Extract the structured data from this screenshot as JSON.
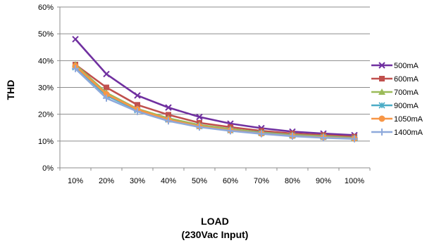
{
  "chart_data": {
    "type": "line",
    "categories": [
      "10%",
      "20%",
      "30%",
      "40%",
      "50%",
      "60%",
      "70%",
      "80%",
      "90%",
      "100%"
    ],
    "ylabel": "THD",
    "xlabel_line1": "LOAD",
    "xlabel_line2": "(230Vac Input)",
    "ylim": [
      0,
      60
    ],
    "y_tick_labels": [
      "0%",
      "10%",
      "20%",
      "30%",
      "40%",
      "50%",
      "60%"
    ],
    "grid": true,
    "legend_position": "right",
    "series": [
      {
        "name": "500mA",
        "color": "#7030A0",
        "marker": "x",
        "values": [
          48,
          35,
          27,
          22.5,
          19,
          16.5,
          14.8,
          13.5,
          12.8,
          12.2
        ]
      },
      {
        "name": "600mA",
        "color": "#C0504D",
        "marker": "square",
        "values": [
          38.5,
          30,
          23.5,
          19.8,
          16.8,
          15.2,
          13.8,
          12.8,
          12.2,
          11.6
        ]
      },
      {
        "name": "700mA",
        "color": "#9BBB59",
        "marker": "triangle",
        "values": [
          38.5,
          28,
          22,
          18.5,
          16,
          14.5,
          13.2,
          12.3,
          11.8,
          11.2
        ]
      },
      {
        "name": "900mA",
        "color": "#4BACC6",
        "marker": "star",
        "values": [
          37.5,
          27,
          21.5,
          18,
          15.5,
          14,
          13,
          12,
          11.5,
          11
        ]
      },
      {
        "name": "1050mA",
        "color": "#F79646",
        "marker": "circle",
        "values": [
          38,
          27.5,
          21.8,
          18,
          15.5,
          14,
          12.8,
          11.9,
          11.4,
          10.9
        ]
      },
      {
        "name": "1400mA",
        "color": "#8EA9DB",
        "marker": "plus",
        "values": [
          37,
          26,
          21,
          17.5,
          15.2,
          13.8,
          12.7,
          11.8,
          11.2,
          10.8
        ]
      }
    ]
  }
}
